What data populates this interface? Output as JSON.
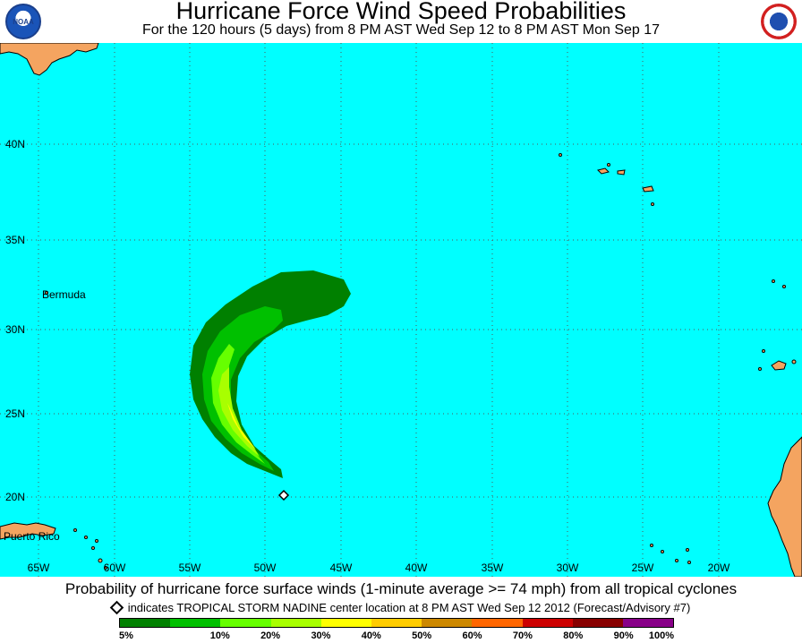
{
  "title": "Hurricane Force Wind Speed Probabilities",
  "subtitle": "For the 120 hours (5 days) from 8 PM AST Wed Sep 12 to 8 PM AST Mon Sep 17",
  "logos": {
    "left": "NOAA",
    "right": "National Weather Service"
  },
  "map": {
    "lat_labels": [
      "40N",
      "35N",
      "30N",
      "25N",
      "20N"
    ],
    "lon_labels": [
      "65W",
      "60W",
      "55W",
      "50W",
      "45W",
      "40W",
      "35W",
      "30W",
      "25W",
      "20W"
    ],
    "place_labels": {
      "bermuda": "Bermuda",
      "puerto_rico": "Puerto Rico"
    },
    "ocean_color": "#00ffff",
    "land_color": "#f4a460",
    "storm_center": {
      "lat": 20.2,
      "lon": -49.2
    }
  },
  "footer": {
    "description": "Probability of hurricane force surface winds (1-minute average >= 74 mph) from all tropical cyclones",
    "storm_note": "indicates TROPICAL STORM NADINE center location at 8 PM AST Wed Sep 12 2012 (Forecast/Advisory #7)"
  },
  "legend": {
    "colors": [
      "#008000",
      "#00c000",
      "#66ff00",
      "#a8ff00",
      "#ffff00",
      "#ffcc00",
      "#cc8800",
      "#ff6600",
      "#cc0000",
      "#880000",
      "#880088"
    ],
    "labels": [
      "5%",
      "10%",
      "20%",
      "30%",
      "40%",
      "50%",
      "60%",
      "70%",
      "80%",
      "90%",
      "100%"
    ]
  }
}
